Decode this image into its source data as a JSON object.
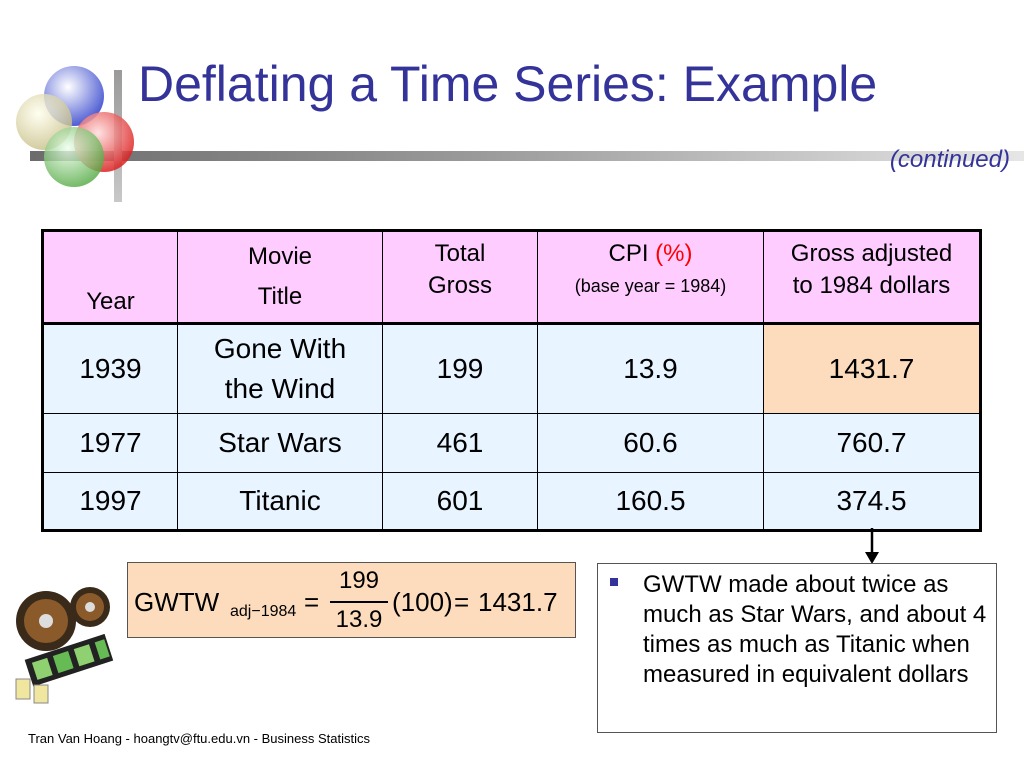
{
  "slide": {
    "title": "Deflating a Time Series: Example",
    "subtitle": "(continued)"
  },
  "table": {
    "headers": {
      "year": "Year",
      "movie_line1": "Movie",
      "movie_line2": "Title",
      "gross_line1": "Total",
      "gross_line2": "Gross",
      "cpi_label": "CPI ",
      "cpi_unit": "(%)",
      "cpi_note": "(base year = 1984)",
      "adjusted_line1": "Gross adjusted",
      "adjusted_line2": "to 1984 dollars"
    },
    "rows": [
      {
        "year": "1939",
        "title_line1": "Gone With",
        "title_line2": "the Wind",
        "gross": "199",
        "cpi": "13.9",
        "adjusted": "1431.7"
      },
      {
        "year": "1977",
        "title": "Star Wars",
        "gross": "461",
        "cpi": "60.6",
        "adjusted": "760.7"
      },
      {
        "year": "1997",
        "title": "Titanic",
        "gross": "601",
        "cpi": "160.5",
        "adjusted": "374.5"
      }
    ],
    "highlight_color": "#fcdcbc"
  },
  "formula": {
    "lhs": "GWTW",
    "subscript": "adj−1984",
    "equals": "=",
    "numerator": "199",
    "denominator": "13.9",
    "factor": "(100)",
    "result": "1431.7"
  },
  "note": {
    "text": "GWTW made about twice as much as Star Wars, and about 4 times as much as Titanic when measured in equivalent dollars"
  },
  "footer": {
    "text": "Tran Van Hoang - hoangtv@ftu.edu.vn - Business Statistics"
  },
  "colors": {
    "title": "#333399",
    "header_bg": "#ffccff",
    "row_bg": "#e8f4ff",
    "accent_red": "#ff0000"
  },
  "icons": {
    "logo": "overlapping-circles-logo",
    "clipart": "film-reel-clipart",
    "arrow": "down-arrow-icon",
    "bullet": "square-bullet-icon"
  }
}
